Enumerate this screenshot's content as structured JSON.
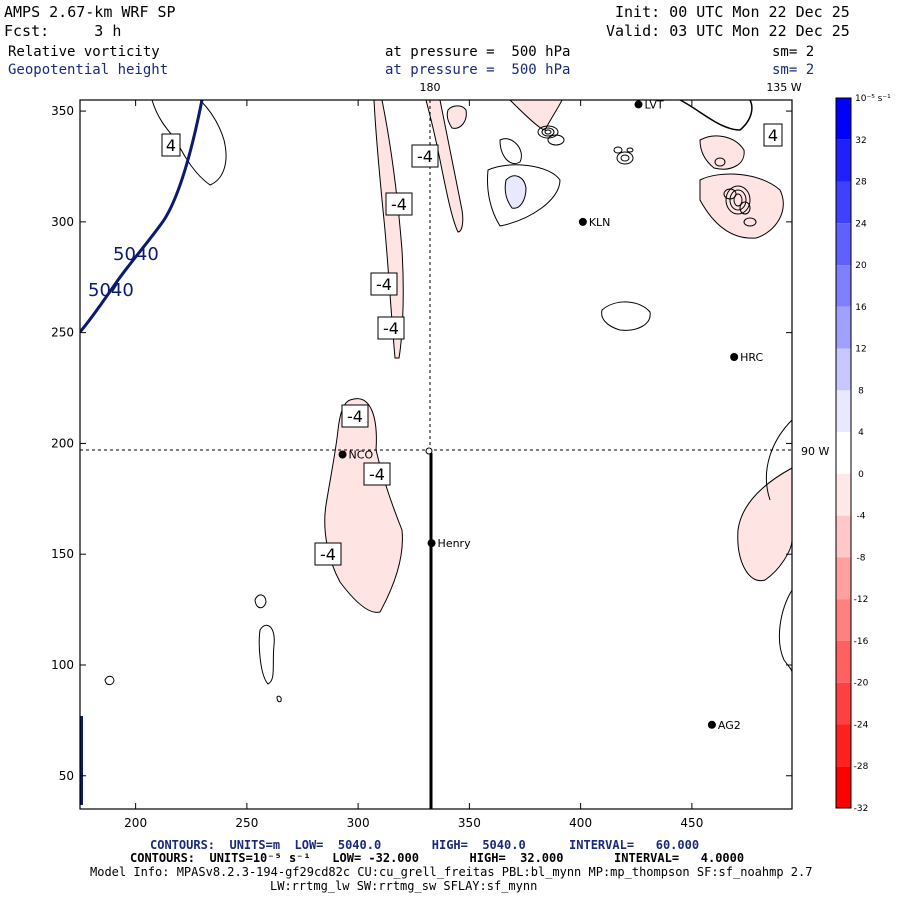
{
  "header": {
    "model": "AMPS 2.67-km WRF SP",
    "init": "Init: 00 UTC Mon 22 Dec 25",
    "fcst": "Fcst:     3 h",
    "valid": "Valid: 03 UTC Mon 22 Dec 25",
    "field1": "Relative vorticity",
    "field1_level": "at pressure =  500 hPa",
    "field1_sm": "sm= 2",
    "field2": "Geopotential height",
    "field2_level": "at pressure =  500 hPa",
    "field2_sm": "sm= 2"
  },
  "map": {
    "lon_labels": {
      "top_180": "180",
      "top_135w": "135 W",
      "right_90w": "90 W"
    },
    "x_ticks": [
      "200",
      "250",
      "300",
      "350",
      "400",
      "450"
    ],
    "y_ticks": [
      "350",
      "300",
      "250",
      "200",
      "150",
      "100",
      "50"
    ],
    "stations": [
      {
        "id": "NCO",
        "x": 293,
        "y": 195
      },
      {
        "id": "Henry",
        "x": 333,
        "y": 155
      },
      {
        "id": "KLN",
        "x": 401,
        "y": 300
      },
      {
        "id": "HRC",
        "x": 469,
        "y": 239
      },
      {
        "id": "AG2",
        "x": 459,
        "y": 73
      },
      {
        "id": "LVT",
        "x": 426,
        "y": 353
      }
    ],
    "height_labels": [
      "5040",
      "5040"
    ],
    "vort_labels": [
      "4",
      "4",
      "-4",
      "-4",
      "-4",
      "-4",
      "-4",
      "-4",
      "-4"
    ],
    "axis_range": {
      "x": [
        175,
        495
      ],
      "y": [
        35,
        355
      ]
    }
  },
  "colorbar": {
    "unit": "10⁻⁵ s⁻¹",
    "ticks": [
      "32",
      "28",
      "24",
      "20",
      "16",
      "12",
      "8",
      "4",
      "0",
      "-4",
      "-8",
      "-12",
      "-16",
      "-20",
      "-24",
      "-28",
      "-32"
    ],
    "colors": [
      "#0000ff",
      "#2020ff",
      "#4040ff",
      "#6060ff",
      "#8080ff",
      "#a0a0ff",
      "#c8c8ff",
      "#e8e8ff",
      "#ffffff",
      "#ffe8e8",
      "#ffc8c8",
      "#ffa0a0",
      "#ff8080",
      "#ff6060",
      "#ff4040",
      "#ff2020",
      "#ff0000"
    ]
  },
  "footer": {
    "line1": "CONTOURS:  UNITS=m  LOW=  5040.0       HIGH=  5040.0      INTERVAL=   60.000",
    "line2": "CONTOURS:  UNITS=10⁻⁵ s⁻¹   LOW= -32.000       HIGH=  32.000       INTERVAL=   4.0000",
    "line3": "Model Info: MPASv8.2.3-194-gf29cd82c CU:cu_grell_freitas PBL:bl_mynn MP:mp_thompson SF:sf_noahmp 2.7",
    "line4": "LW:rrtmg_lw SW:rrtmg_sw SFLAY:sf_mynn"
  }
}
